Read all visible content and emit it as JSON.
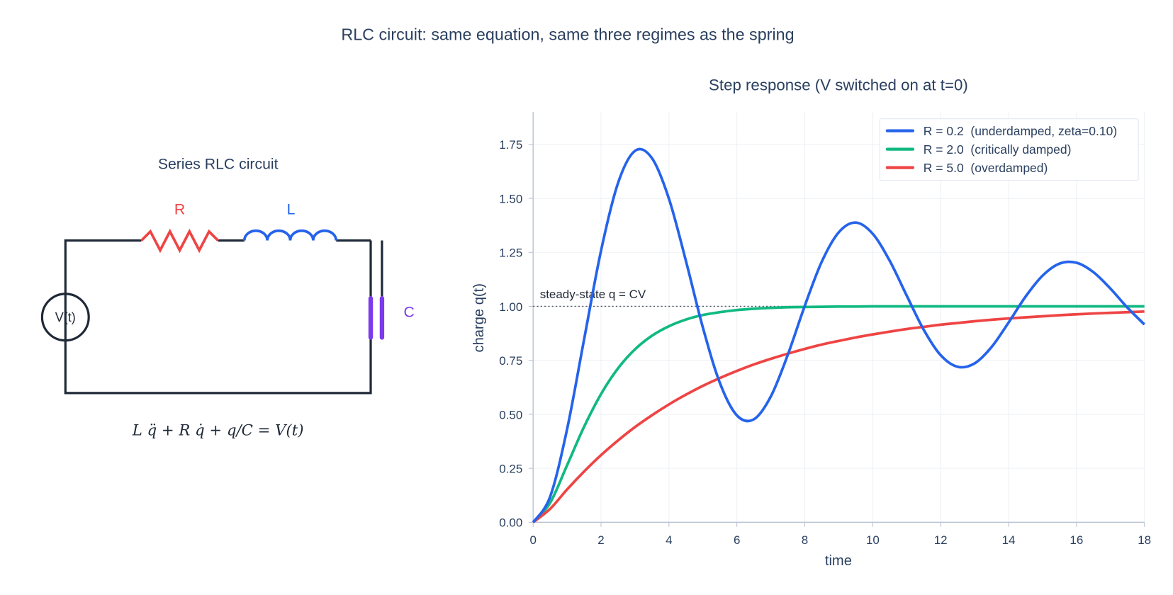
{
  "title": "RLC circuit: same equation, same three regimes as the spring",
  "circuit": {
    "title": "Series RLC circuit",
    "source_label": "V(t)",
    "resistor_label": "R",
    "inductor_label": "L",
    "capacitor_label": "C",
    "equation": "L q̈ + R q̇ + q/C = V(t)",
    "colors": {
      "wire": "#1f2937",
      "resistor": "#ef4444",
      "inductor": "#2563eb",
      "capacitor": "#7c3aed"
    }
  },
  "chart_data": {
    "type": "line",
    "title": "Step response (V switched on at t=0)",
    "xlabel": "time",
    "ylabel": "charge q(t)",
    "xlim": [
      0,
      18
    ],
    "ylim": [
      0,
      1.9
    ],
    "xticks": [
      0,
      2,
      4,
      6,
      8,
      10,
      12,
      14,
      16,
      18
    ],
    "xtick_labels": [
      "0",
      "2",
      "4",
      "6",
      "8",
      "10",
      "12",
      "14",
      "16",
      "18"
    ],
    "yticks": [
      0,
      0.25,
      0.5,
      0.75,
      1.0,
      1.25,
      1.5,
      1.75
    ],
    "ytick_labels": [
      "0.00",
      "0.25",
      "0.50",
      "0.75",
      "1.00",
      "1.25",
      "1.50",
      "1.75"
    ],
    "grid": true,
    "legend_position": "top-right",
    "x": [
      0,
      0.5,
      1,
      1.5,
      2,
      2.5,
      3,
      3.5,
      4,
      4.5,
      5,
      5.5,
      6,
      6.5,
      7,
      7.5,
      8,
      8.5,
      9,
      9.5,
      10,
      10.5,
      11,
      11.5,
      12,
      12.5,
      13,
      13.5,
      14,
      14.5,
      15,
      15.5,
      16,
      16.5,
      17,
      17.5,
      18
    ],
    "series": [
      {
        "name": "R = 0.2  (underdamped, zeta=0.10)",
        "color": "#2563eb",
        "values": [
          0,
          0.118,
          0.431,
          0.846,
          1.258,
          1.571,
          1.72,
          1.686,
          1.498,
          1.21,
          0.901,
          0.645,
          0.495,
          0.477,
          0.583,
          0.776,
          1.003,
          1.207,
          1.343,
          1.388,
          1.336,
          1.211,
          1.05,
          0.892,
          0.774,
          0.72,
          0.736,
          0.812,
          0.925,
          1.045,
          1.142,
          1.198,
          1.202,
          1.158,
          1.082,
          0.994,
          0.916
        ]
      },
      {
        "name": "R = 2.0  (critically damped)",
        "color": "#10b981",
        "values": [
          0,
          0.09,
          0.264,
          0.442,
          0.594,
          0.713,
          0.801,
          0.864,
          0.908,
          0.939,
          0.96,
          0.973,
          0.983,
          0.989,
          0.993,
          0.996,
          0.997,
          0.998,
          0.999,
          0.999,
          1.0,
          1.0,
          1.0,
          1.0,
          1.0,
          1.0,
          1.0,
          1.0,
          1.0,
          1.0,
          1.0,
          1.0,
          1.0,
          1.0,
          1.0,
          1.0,
          1.0
        ]
      },
      {
        "name": "R = 5.0  (overdamped)",
        "color": "#ef4444",
        "values": [
          0,
          0.062,
          0.152,
          0.235,
          0.311,
          0.379,
          0.441,
          0.496,
          0.546,
          0.591,
          0.632,
          0.668,
          0.701,
          0.731,
          0.757,
          0.781,
          0.803,
          0.823,
          0.84,
          0.856,
          0.87,
          0.883,
          0.895,
          0.905,
          0.915,
          0.923,
          0.931,
          0.938,
          0.944,
          0.949,
          0.954,
          0.959,
          0.963,
          0.967,
          0.97,
          0.973,
          0.976
        ]
      }
    ],
    "annotations": [
      {
        "text": "steady-state q = CV",
        "y": 1.0,
        "style": "dotted"
      }
    ]
  }
}
